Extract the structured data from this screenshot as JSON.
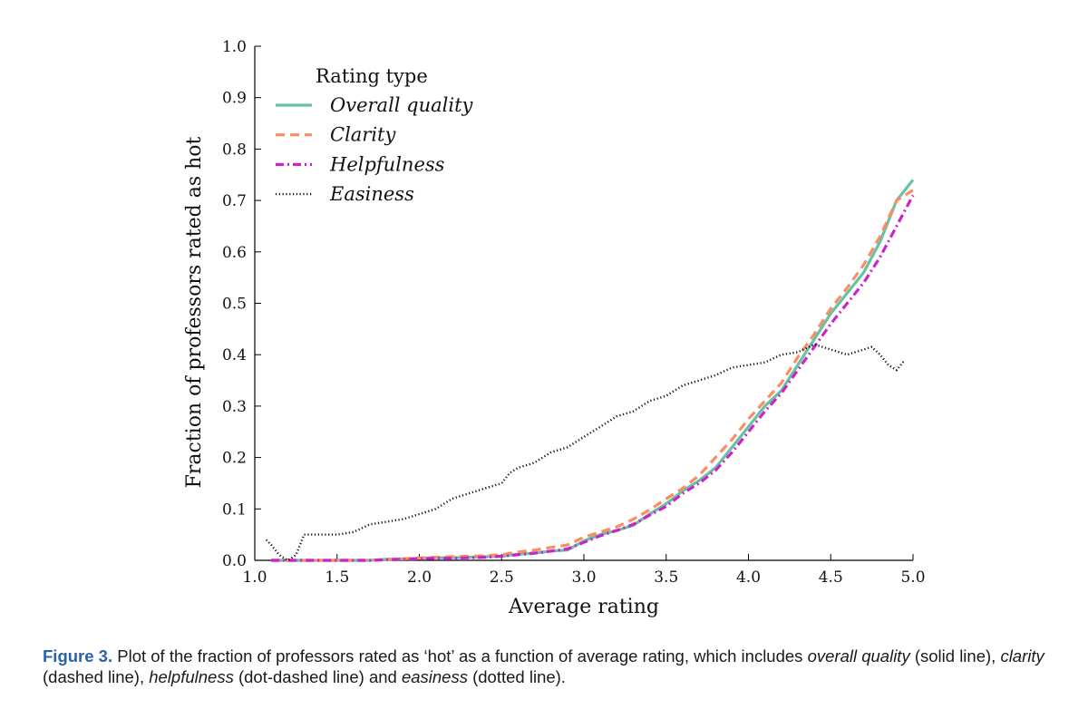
{
  "chart_data": {
    "type": "line",
    "xlabel": "Average rating",
    "ylabel": "Fraction of professors rated as hot",
    "xlim": [
      1.0,
      5.0
    ],
    "ylim": [
      0.0,
      1.0
    ],
    "xticks": [
      "1.0",
      "1.5",
      "2.0",
      "2.5",
      "3.0",
      "3.5",
      "4.0",
      "4.5",
      "5.0"
    ],
    "yticks": [
      "0.0",
      "0.1",
      "0.2",
      "0.3",
      "0.4",
      "0.5",
      "0.6",
      "0.7",
      "0.8",
      "0.9",
      "1.0"
    ],
    "grid": false,
    "legend": {
      "title": "Rating type",
      "position": "top-left"
    },
    "series": [
      {
        "name": "Overall quality",
        "style": "solid",
        "color": "#66c2a5",
        "x": [
          1.1,
          1.2,
          1.3,
          1.4,
          1.5,
          1.6,
          1.7,
          1.8,
          1.9,
          2.0,
          2.1,
          2.2,
          2.3,
          2.4,
          2.5,
          2.6,
          2.7,
          2.8,
          2.9,
          3.0,
          3.1,
          3.2,
          3.3,
          3.4,
          3.5,
          3.6,
          3.7,
          3.8,
          3.9,
          4.0,
          4.1,
          4.2,
          4.3,
          4.4,
          4.5,
          4.6,
          4.7,
          4.8,
          4.9,
          5.0
        ],
        "y": [
          0.0,
          0.0,
          0.0,
          0.0,
          0.0,
          0.0,
          0.0,
          0.002,
          0.003,
          0.004,
          0.005,
          0.005,
          0.006,
          0.007,
          0.008,
          0.012,
          0.014,
          0.018,
          0.02,
          0.038,
          0.05,
          0.058,
          0.068,
          0.09,
          0.11,
          0.135,
          0.155,
          0.18,
          0.22,
          0.26,
          0.3,
          0.33,
          0.38,
          0.43,
          0.48,
          0.52,
          0.56,
          0.62,
          0.7,
          0.74
        ]
      },
      {
        "name": "Clarity",
        "style": "dashed",
        "color": "#fc8d62",
        "x": [
          1.1,
          1.2,
          1.3,
          1.4,
          1.5,
          1.6,
          1.7,
          1.8,
          1.9,
          2.0,
          2.1,
          2.2,
          2.3,
          2.4,
          2.5,
          2.6,
          2.7,
          2.8,
          2.9,
          3.0,
          3.1,
          3.2,
          3.3,
          3.4,
          3.5,
          3.6,
          3.7,
          3.8,
          3.9,
          4.0,
          4.1,
          4.2,
          4.3,
          4.4,
          4.5,
          4.6,
          4.7,
          4.8,
          4.9,
          5.0
        ],
        "y": [
          0.0,
          0.0,
          0.0,
          0.0,
          0.0,
          0.0,
          0.0,
          0.002,
          0.003,
          0.005,
          0.006,
          0.007,
          0.008,
          0.009,
          0.011,
          0.016,
          0.02,
          0.025,
          0.03,
          0.045,
          0.055,
          0.065,
          0.08,
          0.098,
          0.12,
          0.14,
          0.165,
          0.2,
          0.235,
          0.275,
          0.31,
          0.345,
          0.395,
          0.44,
          0.49,
          0.53,
          0.575,
          0.63,
          0.7,
          0.72
        ]
      },
      {
        "name": "Helpfulness",
        "style": "dash-dot",
        "color": "#cc22cc",
        "x": [
          1.1,
          1.2,
          1.3,
          1.4,
          1.5,
          1.6,
          1.7,
          1.8,
          1.9,
          2.0,
          2.1,
          2.2,
          2.3,
          2.4,
          2.5,
          2.6,
          2.7,
          2.8,
          2.9,
          3.0,
          3.1,
          3.2,
          3.3,
          3.4,
          3.5,
          3.6,
          3.7,
          3.8,
          3.9,
          4.0,
          4.1,
          4.2,
          4.3,
          4.4,
          4.5,
          4.6,
          4.7,
          4.8,
          4.9,
          5.0
        ],
        "y": [
          0.0,
          0.0,
          0.0,
          0.0,
          0.0,
          0.0,
          0.0,
          0.001,
          0.002,
          0.003,
          0.004,
          0.004,
          0.005,
          0.006,
          0.008,
          0.011,
          0.014,
          0.018,
          0.022,
          0.035,
          0.048,
          0.058,
          0.07,
          0.088,
          0.105,
          0.13,
          0.15,
          0.175,
          0.21,
          0.25,
          0.29,
          0.325,
          0.37,
          0.415,
          0.46,
          0.5,
          0.54,
          0.59,
          0.65,
          0.71
        ]
      },
      {
        "name": "Easiness",
        "style": "dotted",
        "color": "#111111",
        "x": [
          1.07,
          1.1,
          1.15,
          1.2,
          1.25,
          1.3,
          1.4,
          1.5,
          1.6,
          1.7,
          1.8,
          1.9,
          2.0,
          2.1,
          2.2,
          2.3,
          2.4,
          2.5,
          2.55,
          2.6,
          2.7,
          2.8,
          2.9,
          3.0,
          3.1,
          3.2,
          3.3,
          3.4,
          3.5,
          3.6,
          3.7,
          3.8,
          3.9,
          4.0,
          4.1,
          4.2,
          4.3,
          4.4,
          4.5,
          4.6,
          4.7,
          4.75,
          4.8,
          4.85,
          4.9,
          4.95
        ],
        "y": [
          0.04,
          0.03,
          0.01,
          0.0,
          0.01,
          0.05,
          0.05,
          0.05,
          0.055,
          0.07,
          0.075,
          0.08,
          0.09,
          0.1,
          0.12,
          0.13,
          0.14,
          0.15,
          0.17,
          0.18,
          0.19,
          0.21,
          0.22,
          0.24,
          0.26,
          0.28,
          0.29,
          0.31,
          0.32,
          0.34,
          0.35,
          0.36,
          0.375,
          0.38,
          0.385,
          0.4,
          0.405,
          0.42,
          0.41,
          0.4,
          0.41,
          0.415,
          0.4,
          0.38,
          0.37,
          0.39
        ]
      }
    ]
  },
  "caption": {
    "segments": [
      {
        "text": "Figure 3.",
        "style": "label"
      },
      {
        "text": " Plot of the fraction of professors rated as ‘hot’ as a function of average rating, which includes ",
        "style": "normal"
      },
      {
        "text": "overall quality",
        "style": "italic"
      },
      {
        "text": " (solid line), ",
        "style": "normal"
      },
      {
        "text": "clarity",
        "style": "italic"
      },
      {
        "text": " (dashed line), ",
        "style": "normal"
      },
      {
        "text": "helpfulness",
        "style": "italic"
      },
      {
        "text": " (dot-dashed line) and ",
        "style": "normal"
      },
      {
        "text": "easiness",
        "style": "italic"
      },
      {
        "text": " (dotted line).",
        "style": "normal"
      }
    ]
  }
}
